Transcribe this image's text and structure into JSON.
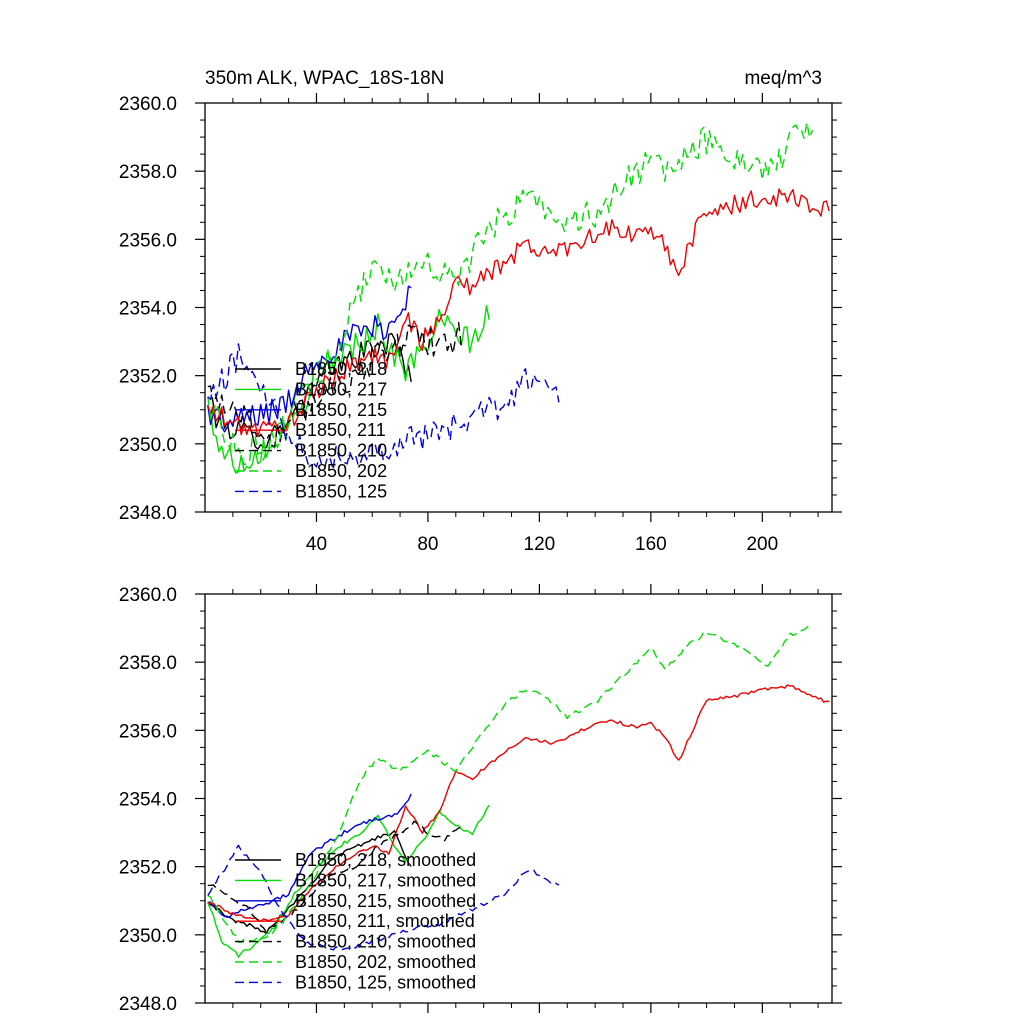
{
  "chart_data": [
    {
      "type": "line",
      "title_left": "350m ALK, WPAC_18S-18N",
      "title_right": "meq/m^3",
      "xlabel": "",
      "ylabel": "",
      "xlim": [
        0,
        225
      ],
      "ylim": [
        2348.0,
        2360.0
      ],
      "y_ticks": [
        "2348.0",
        "2350.0",
        "2352.0",
        "2354.0",
        "2356.0",
        "2358.0",
        "2360.0"
      ],
      "x_ticks": [
        "40",
        "80",
        "120",
        "160",
        "200"
      ],
      "legend": [
        {
          "label": "B1850, 218",
          "color": "#000000",
          "dash": "solid"
        },
        {
          "label": "B1850, 217",
          "color": "#00dd00",
          "dash": "solid"
        },
        {
          "label": "B1850, 215",
          "color": "#0000dd",
          "dash": "solid"
        },
        {
          "label": "B1850, 211",
          "color": "#ee0000",
          "dash": "solid"
        },
        {
          "label": "B1850, 210",
          "color": "#000000",
          "dash": "dashed"
        },
        {
          "label": "B1850, 202",
          "color": "#00dd00",
          "dash": "dashed"
        },
        {
          "label": "B1850, 125",
          "color": "#0000dd",
          "dash": "dashed"
        }
      ],
      "series": [
        {
          "name": "B1850, 218",
          "color": "#000000",
          "dash": "solid",
          "noise": 0.35,
          "x": [
            1,
            8,
            15,
            22,
            30,
            38,
            45,
            52,
            60,
            68,
            74
          ],
          "y": [
            2351.0,
            2350.5,
            2350.3,
            2350.1,
            2350.8,
            2351.5,
            2352.2,
            2352.5,
            2352.8,
            2353.0,
            2352.0
          ]
        },
        {
          "name": "B1850, 217",
          "color": "#00dd00",
          "dash": "solid",
          "noise": 0.4,
          "x": [
            1,
            6,
            12,
            18,
            25,
            32,
            40,
            48,
            56,
            62,
            68,
            72,
            78,
            84,
            90,
            96,
            102
          ],
          "y": [
            2351.0,
            2349.8,
            2349.4,
            2349.7,
            2350.2,
            2351.2,
            2352.0,
            2352.6,
            2353.0,
            2353.5,
            2352.6,
            2352.2,
            2352.7,
            2353.6,
            2353.2,
            2353.0,
            2353.8
          ]
        },
        {
          "name": "B1850, 215",
          "color": "#0000dd",
          "dash": "solid",
          "noise": 0.4,
          "x": [
            1,
            8,
            15,
            22,
            30,
            38,
            46,
            54,
            62,
            68,
            74
          ],
          "y": [
            2351.0,
            2350.5,
            2350.8,
            2350.9,
            2351.2,
            2352.4,
            2352.8,
            2353.2,
            2353.4,
            2353.5,
            2354.6
          ]
        },
        {
          "name": "B1850, 211",
          "color": "#ee0000",
          "dash": "solid",
          "noise": 0.3,
          "x": [
            1,
            10,
            20,
            30,
            40,
            50,
            60,
            66,
            72,
            78,
            84,
            90,
            96,
            105,
            115,
            125,
            135,
            145,
            155,
            160,
            165,
            170,
            175,
            180,
            190,
            200,
            210,
            218,
            224
          ],
          "y": [
            2351.0,
            2350.6,
            2350.4,
            2350.6,
            2351.5,
            2352.2,
            2352.6,
            2352.4,
            2353.8,
            2353.0,
            2353.6,
            2354.8,
            2354.6,
            2355.2,
            2355.8,
            2355.6,
            2356.0,
            2356.3,
            2356.1,
            2356.2,
            2355.8,
            2355.1,
            2356.0,
            2356.9,
            2357.0,
            2357.2,
            2357.3,
            2357.0,
            2356.8
          ]
        },
        {
          "name": "B1850, 210",
          "color": "#000000",
          "dash": "dashed",
          "noise": 0.45,
          "x": [
            1,
            8,
            15,
            22,
            30,
            38,
            46,
            54,
            62,
            70,
            75,
            80,
            86,
            92
          ],
          "y": [
            2351.5,
            2351.2,
            2350.8,
            2350.1,
            2350.5,
            2351.2,
            2351.8,
            2352.0,
            2352.6,
            2353.0,
            2353.3,
            2353.0,
            2352.8,
            2353.2
          ]
        },
        {
          "name": "B1850, 202",
          "color": "#00dd00",
          "dash": "dashed",
          "noise": 0.45,
          "x": [
            1,
            12,
            24,
            36,
            48,
            56,
            62,
            70,
            80,
            90,
            100,
            108,
            115,
            122,
            130,
            140,
            150,
            160,
            165,
            172,
            180,
            188,
            195,
            202,
            210,
            218
          ],
          "y": [
            2351.2,
            2349.8,
            2350.0,
            2351.2,
            2353.0,
            2354.6,
            2355.2,
            2354.8,
            2355.4,
            2354.8,
            2356.0,
            2356.8,
            2357.2,
            2357.0,
            2356.4,
            2356.8,
            2357.6,
            2358.4,
            2357.8,
            2358.4,
            2358.9,
            2358.6,
            2358.3,
            2357.9,
            2358.8,
            2359.3
          ]
        },
        {
          "name": "B1850, 125",
          "color": "#0000dd",
          "dash": "dashed",
          "noise": 0.4,
          "x": [
            1,
            6,
            12,
            20,
            28,
            36,
            44,
            52,
            60,
            68,
            76,
            84,
            92,
            100,
            108,
            114,
            118,
            122,
            127
          ],
          "y": [
            2351.2,
            2351.8,
            2352.6,
            2351.8,
            2350.6,
            2349.8,
            2349.6,
            2349.6,
            2349.8,
            2350.0,
            2350.2,
            2350.3,
            2350.6,
            2350.9,
            2351.2,
            2351.8,
            2352.0,
            2351.7,
            2351.4
          ]
        }
      ]
    },
    {
      "type": "line",
      "title_left": "",
      "title_right": "",
      "xlabel": "",
      "ylabel": "",
      "xlim": [
        0,
        225
      ],
      "ylim": [
        2348.0,
        2360.0
      ],
      "y_ticks": [
        "2348.0",
        "2350.0",
        "2352.0",
        "2354.0",
        "2356.0",
        "2358.0",
        "2360.0"
      ],
      "x_ticks": [],
      "legend": [
        {
          "label": "B1850, 218, smoothed",
          "color": "#000000",
          "dash": "solid"
        },
        {
          "label": "B1850, 217, smoothed",
          "color": "#00dd00",
          "dash": "solid"
        },
        {
          "label": "B1850, 215, smoothed",
          "color": "#0000dd",
          "dash": "solid"
        },
        {
          "label": "B1850, 211, smoothed",
          "color": "#ee0000",
          "dash": "solid"
        },
        {
          "label": "B1850, 210, smoothed",
          "color": "#000000",
          "dash": "dashed"
        },
        {
          "label": "B1850, 202, smoothed",
          "color": "#00dd00",
          "dash": "dashed"
        },
        {
          "label": "B1850, 125, smoothed",
          "color": "#0000dd",
          "dash": "dashed"
        }
      ],
      "series": [
        {
          "name": "B1850, 218, smoothed",
          "color": "#000000",
          "dash": "solid",
          "noise": 0.06,
          "x": [
            1,
            8,
            15,
            22,
            30,
            38,
            45,
            52,
            60,
            68,
            74
          ],
          "y": [
            2351.0,
            2350.5,
            2350.3,
            2350.1,
            2350.8,
            2351.5,
            2352.2,
            2352.5,
            2352.8,
            2353.0,
            2352.0
          ]
        },
        {
          "name": "B1850, 217, smoothed",
          "color": "#00dd00",
          "dash": "solid",
          "noise": 0.06,
          "x": [
            1,
            6,
            12,
            18,
            25,
            32,
            40,
            48,
            56,
            62,
            68,
            72,
            78,
            84,
            90,
            96,
            102
          ],
          "y": [
            2351.0,
            2349.8,
            2349.4,
            2349.7,
            2350.2,
            2351.2,
            2352.0,
            2352.6,
            2353.0,
            2353.5,
            2352.6,
            2352.2,
            2352.7,
            2353.6,
            2353.2,
            2353.0,
            2353.8
          ]
        },
        {
          "name": "B1850, 215, smoothed",
          "color": "#0000dd",
          "dash": "solid",
          "noise": 0.06,
          "x": [
            1,
            8,
            15,
            22,
            30,
            38,
            46,
            54,
            62,
            68,
            74
          ],
          "y": [
            2351.0,
            2350.5,
            2350.8,
            2350.9,
            2351.2,
            2352.4,
            2352.8,
            2353.2,
            2353.4,
            2353.5,
            2354.1
          ]
        },
        {
          "name": "B1850, 211, smoothed",
          "color": "#ee0000",
          "dash": "solid",
          "noise": 0.05,
          "x": [
            1,
            10,
            20,
            30,
            40,
            50,
            60,
            66,
            72,
            78,
            84,
            90,
            96,
            105,
            115,
            125,
            135,
            145,
            155,
            160,
            165,
            170,
            175,
            180,
            190,
            200,
            210,
            218,
            224
          ],
          "y": [
            2351.0,
            2350.6,
            2350.4,
            2350.6,
            2351.5,
            2352.2,
            2352.6,
            2352.4,
            2353.8,
            2353.0,
            2353.6,
            2354.8,
            2354.6,
            2355.2,
            2355.8,
            2355.6,
            2356.0,
            2356.3,
            2356.1,
            2356.2,
            2355.8,
            2355.1,
            2356.0,
            2356.9,
            2357.0,
            2357.2,
            2357.3,
            2357.0,
            2356.8
          ]
        },
        {
          "name": "B1850, 210, smoothed",
          "color": "#000000",
          "dash": "dashed",
          "noise": 0.06,
          "x": [
            1,
            8,
            15,
            22,
            30,
            38,
            46,
            54,
            62,
            70,
            75,
            80,
            86,
            92
          ],
          "y": [
            2351.5,
            2351.2,
            2350.8,
            2350.1,
            2350.5,
            2351.2,
            2351.8,
            2352.0,
            2352.6,
            2353.0,
            2353.3,
            2353.0,
            2352.8,
            2353.2
          ]
        },
        {
          "name": "B1850, 202, smoothed",
          "color": "#00dd00",
          "dash": "dashed",
          "noise": 0.06,
          "x": [
            1,
            12,
            24,
            36,
            48,
            56,
            62,
            70,
            80,
            90,
            100,
            108,
            115,
            122,
            130,
            140,
            150,
            160,
            165,
            172,
            180,
            188,
            195,
            202,
            210,
            218
          ],
          "y": [
            2351.2,
            2349.8,
            2350.0,
            2351.2,
            2353.0,
            2354.6,
            2355.2,
            2354.8,
            2355.4,
            2354.8,
            2356.0,
            2356.8,
            2357.2,
            2357.0,
            2356.4,
            2356.8,
            2357.6,
            2358.4,
            2357.8,
            2358.4,
            2358.9,
            2358.6,
            2358.3,
            2357.9,
            2358.8,
            2359.1
          ]
        },
        {
          "name": "B1850, 125, smoothed",
          "color": "#0000dd",
          "dash": "dashed",
          "noise": 0.06,
          "x": [
            1,
            6,
            12,
            20,
            28,
            36,
            44,
            52,
            60,
            68,
            76,
            84,
            92,
            100,
            108,
            114,
            118,
            122,
            127
          ],
          "y": [
            2351.2,
            2351.8,
            2352.6,
            2351.8,
            2350.6,
            2349.8,
            2349.6,
            2349.6,
            2349.8,
            2350.0,
            2350.2,
            2350.3,
            2350.6,
            2350.9,
            2351.2,
            2351.8,
            2351.9,
            2351.6,
            2351.5
          ]
        }
      ]
    }
  ]
}
